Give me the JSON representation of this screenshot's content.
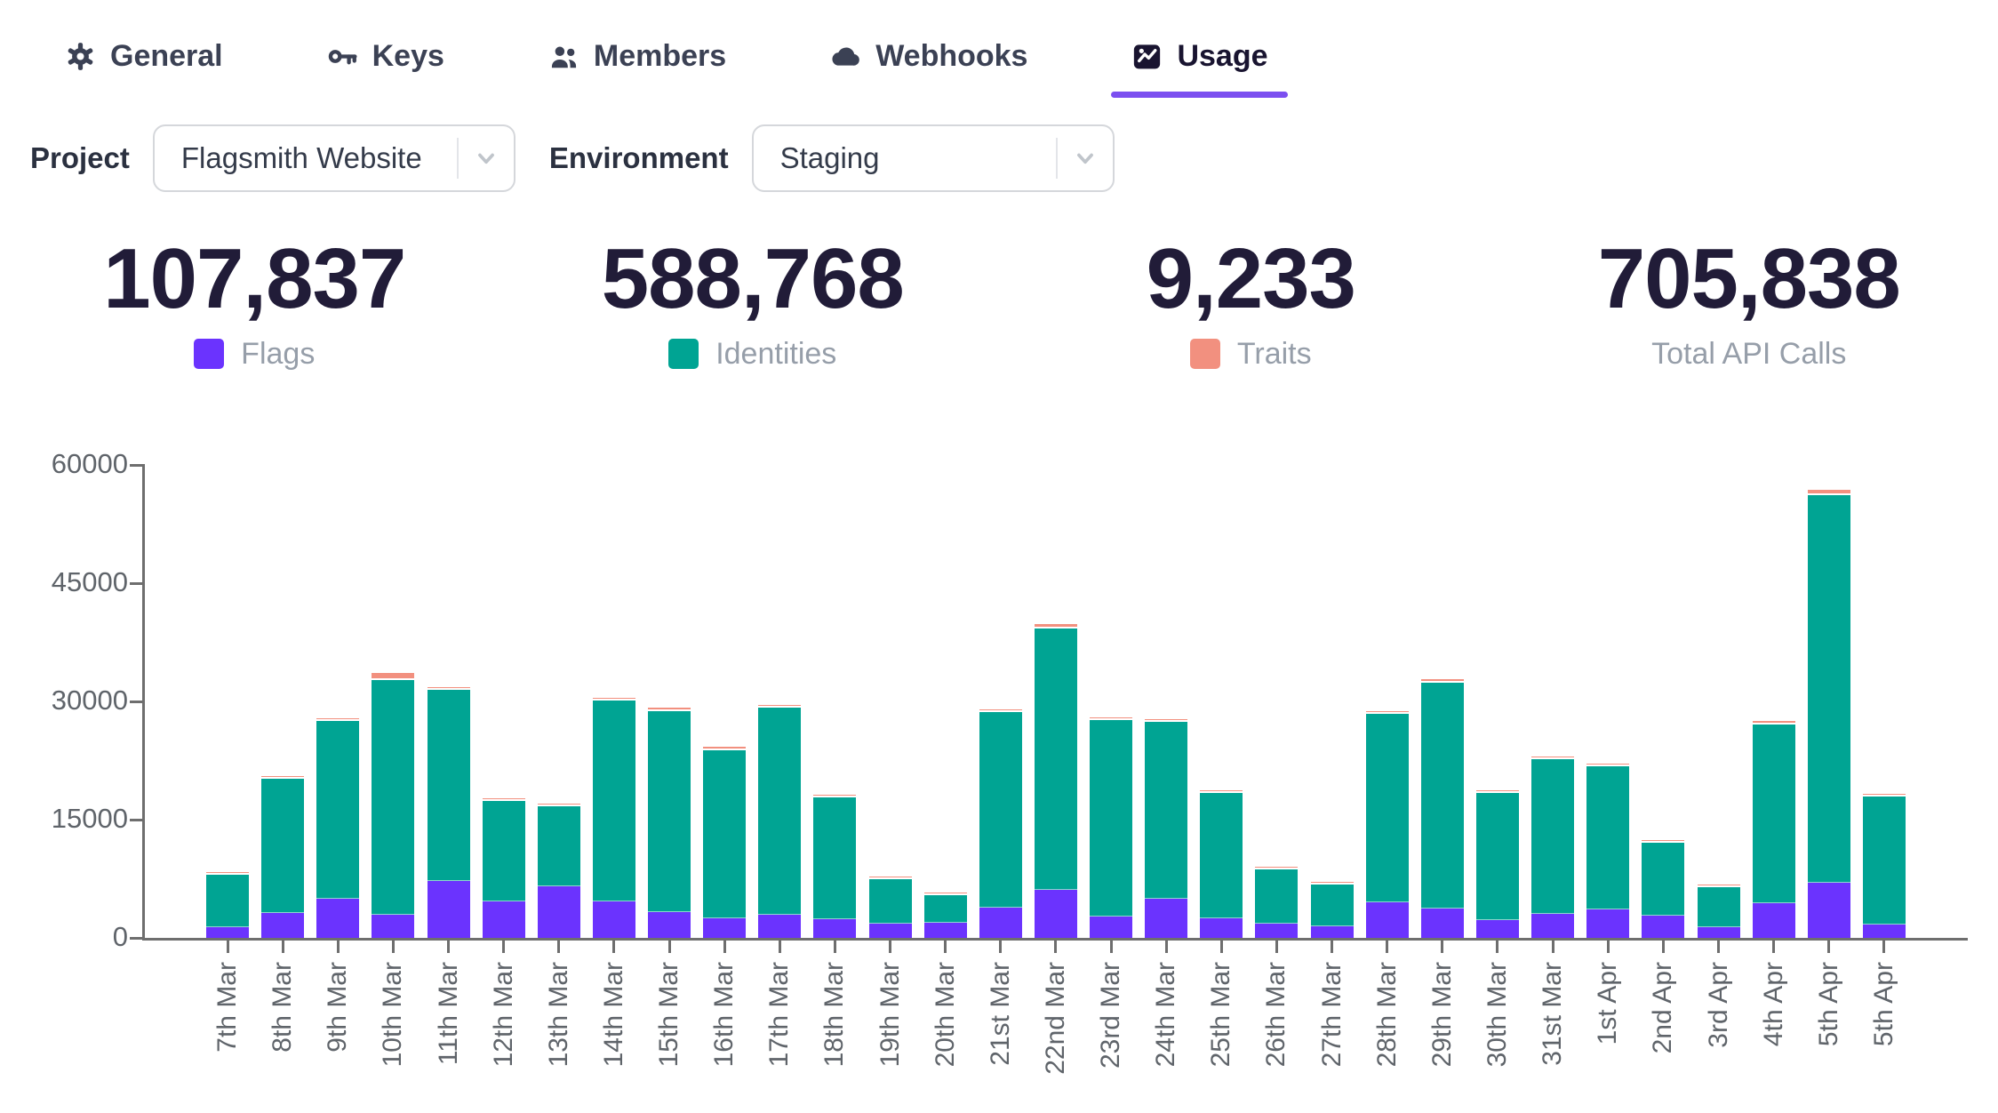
{
  "theme": {
    "accent": "#7c4ff0"
  },
  "tabs": [
    {
      "label": "General",
      "icon": "gear-icon",
      "active": false
    },
    {
      "label": "Keys",
      "icon": "key-icon",
      "active": false
    },
    {
      "label": "Members",
      "icon": "members-icon",
      "active": false
    },
    {
      "label": "Webhooks",
      "icon": "cloud-icon",
      "active": false
    },
    {
      "label": "Usage",
      "icon": "usage-chart-icon",
      "active": true
    }
  ],
  "filters": {
    "project": {
      "label": "Project",
      "value": "Flagsmith Website"
    },
    "environment": {
      "label": "Environment",
      "value": "Staging"
    }
  },
  "stats": [
    {
      "value": "107,837",
      "label": "Flags",
      "color": "#6b33fe"
    },
    {
      "value": "588,768",
      "label": "Identities",
      "color": "#00a493"
    },
    {
      "value": "9,233",
      "label": "Traits",
      "color": "#f2907f"
    },
    {
      "value": "705,838",
      "label": "Total API Calls",
      "color": null
    }
  ],
  "chart_data": {
    "type": "bar",
    "stacked": true,
    "title": "",
    "xlabel": "",
    "ylabel": "",
    "ylim": [
      0,
      60000
    ],
    "yticks": [
      0,
      15000,
      30000,
      45000,
      60000
    ],
    "grid": false,
    "legend_position": "above-chart-with-stats",
    "categories": [
      "7th Mar",
      "8th Mar",
      "9th Mar",
      "10th Mar",
      "11th Mar",
      "12th Mar",
      "13th Mar",
      "14th Mar",
      "15th Mar",
      "16th Mar",
      "17th Mar",
      "18th Mar",
      "19th Mar",
      "20th Mar",
      "21st Mar",
      "22nd Mar",
      "23rd Mar",
      "24th Mar",
      "25th Mar",
      "26th Mar",
      "27th Mar",
      "28th Mar",
      "29th Mar",
      "30th Mar",
      "31st Mar",
      "1st Apr",
      "2nd Apr",
      "3rd Apr",
      "4th Apr",
      "5th Apr",
      "5th Apr"
    ],
    "series": [
      {
        "name": "Flags",
        "color": "#6b33fe",
        "values": [
          1362,
          3187,
          4905,
          2893,
          7214,
          4598,
          6512,
          4621,
          3295,
          2488,
          2916,
          2387,
          1806,
          1912,
          3781,
          6044,
          2712,
          4983,
          2506,
          1788,
          1521,
          4512,
          3698,
          2289,
          3004,
          3612,
          2811,
          1394,
          4413,
          6988,
          1685
        ]
      },
      {
        "name": "Identities",
        "color": "#00a493",
        "values": [
          6696,
          17032,
          22568,
          29823,
          24288,
          12726,
          10145,
          25477,
          25454,
          21363,
          26272,
          15415,
          5610,
          3492,
          24863,
          33258,
          24911,
          22474,
          15847,
          6894,
          5197,
          23867,
          28694,
          16060,
          19700,
          18144,
          9286,
          5028,
          22690,
          49200,
          16294
        ]
      },
      {
        "name": "Traits",
        "color": "#f2907f",
        "values": [
          142,
          281,
          327,
          884,
          298,
          176,
          143,
          402,
          451,
          349,
          312,
          198,
          84,
          96,
          356,
          498,
          377,
          343,
          247,
          118,
          82,
          421,
          446,
          251,
          296,
          244,
          103,
          78,
          397,
          612,
          221
        ]
      }
    ],
    "series_totals": {
      "Flags": 107837,
      "Identities": 588768,
      "Traits": 9233,
      "All": 705838
    }
  }
}
